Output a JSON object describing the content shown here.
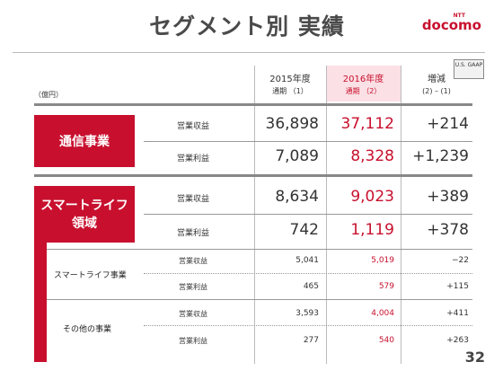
{
  "title": "セグメント別 実績",
  "logo": {
    "ntt": "NTT",
    "brand": "docomo"
  },
  "gaap": "U.S. GAAP",
  "unit": "（億円）",
  "columns": [
    {
      "line1": "2015年度",
      "line2": "通期 （1）"
    },
    {
      "line1": "2016年度",
      "line2": "通期 （2）"
    },
    {
      "line1": "増減",
      "line2": "(2) – (1)"
    }
  ],
  "segments": {
    "telecom": {
      "label": "通信事業",
      "rows": [
        {
          "label": "営業収益",
          "v2015": "36,898",
          "v2016": "37,112",
          "diff": "+214"
        },
        {
          "label": "営業利益",
          "v2015": "7,089",
          "v2016": "8,328",
          "diff": "+1,239"
        }
      ]
    },
    "smartlife": {
      "label_line1": "スマートライフ",
      "label_line2": "領域",
      "rows": [
        {
          "label": "営業収益",
          "v2015": "8,634",
          "v2016": "9,023",
          "diff": "+389"
        },
        {
          "label": "営業利益",
          "v2015": "742",
          "v2016": "1,119",
          "diff": "+378"
        }
      ],
      "subsegments": [
        {
          "label": "スマートライフ事業",
          "rows": [
            {
              "label": "営業収益",
              "v2015": "5,041",
              "v2016": "5,019",
              "diff": "−22"
            },
            {
              "label": "営業利益",
              "v2015": "465",
              "v2016": "579",
              "diff": "+115"
            }
          ]
        },
        {
          "label": "その他の事業",
          "rows": [
            {
              "label": "営業収益",
              "v2015": "3,593",
              "v2016": "4,004",
              "diff": "+411"
            },
            {
              "label": "営業利益",
              "v2015": "277",
              "v2016": "540",
              "diff": "+263"
            }
          ]
        }
      ]
    }
  },
  "page_number": "32",
  "colors": {
    "brand_red": "#c8102e",
    "highlight_pink": "#fbe0e5"
  }
}
